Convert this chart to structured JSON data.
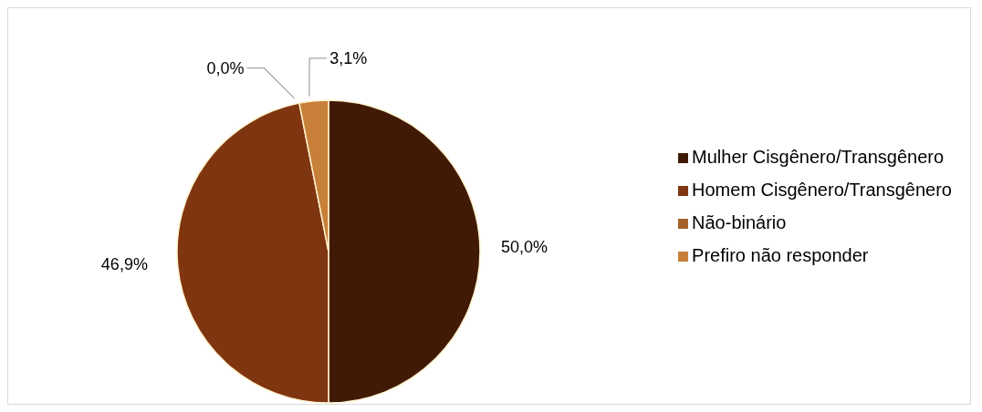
{
  "chart_data": {
    "type": "pie",
    "categories": [
      "Mulher Cisgênero/Transgênero",
      "Homem Cisgênero/Transgênero",
      "Não-binário",
      "Prefiro não responder"
    ],
    "values": [
      50.0,
      46.9,
      0.0,
      3.1
    ],
    "colors": [
      "#401a06",
      "#7f3510",
      "#a5622a",
      "#c87f3a"
    ],
    "value_labels": [
      "50,0%",
      "46,9%",
      "0,0%",
      "3,1%"
    ],
    "legend": "right"
  }
}
